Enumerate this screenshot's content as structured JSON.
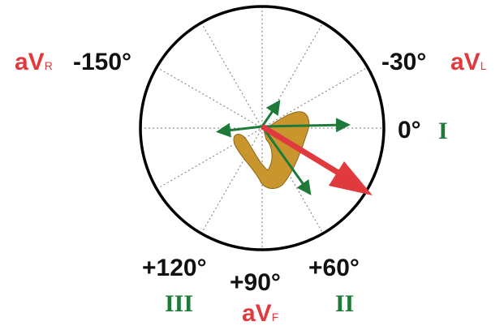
{
  "labels": {
    "avr": {
      "main": "aV",
      "sub": "R"
    },
    "minus150": "-150°",
    "minus30": "-30°",
    "avl": {
      "main": "aV",
      "sub": "L"
    },
    "zero": "0°",
    "lead1": "I",
    "plus120": "+120°",
    "plus90": "+90°",
    "plus60": "+60°",
    "lead3": "III",
    "avf": {
      "main": "aV",
      "sub": "F"
    },
    "lead2": "II"
  }
}
